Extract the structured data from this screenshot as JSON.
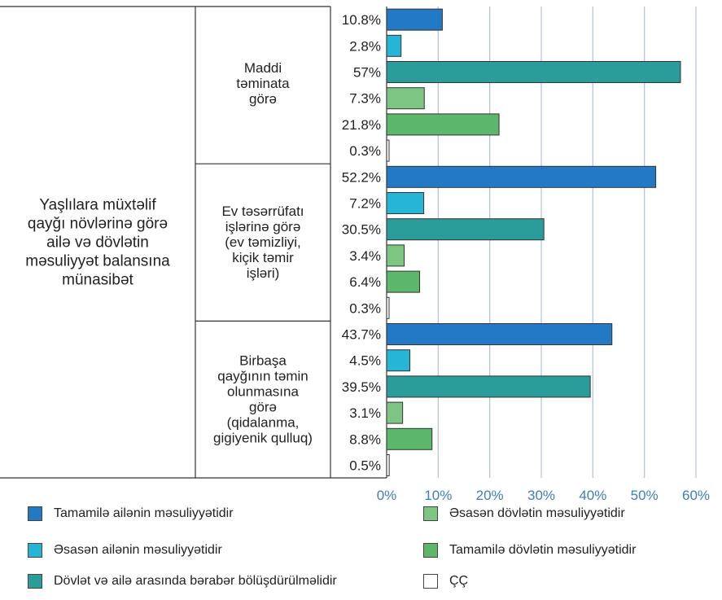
{
  "chart_data": {
    "type": "bar",
    "orientation": "horizontal",
    "row_header": "Yaşlılara müxtəlif qayğı növlərinə görə ailə və dövlətin məsuliyyət balansına münasibət",
    "groups": [
      {
        "label": "Maddi təminata görə",
        "values": [
          10.8,
          2.8,
          57,
          7.3,
          21.8,
          0.3
        ],
        "value_labels": [
          "10.8%",
          "2.8%",
          "57%",
          "7.3%",
          "21.8%",
          "0.3%"
        ]
      },
      {
        "label": "Ev təsərrüfatı işlərinə görə (ev təmizliyi, kiçik təmir işləri)",
        "values": [
          52.2,
          7.2,
          30.5,
          3.4,
          6.4,
          0.3
        ],
        "value_labels": [
          "52.2%",
          "7.2%",
          "30.5%",
          "3.4%",
          "6.4%",
          "0.3%"
        ]
      },
      {
        "label": "Birbaşa qayğının təmin olunmasına görə (qidalanma, gigiyenik qulluq)",
        "values": [
          43.7,
          4.5,
          39.5,
          3.1,
          8.8,
          0.5
        ],
        "value_labels": [
          "43.7%",
          "4.5%",
          "39.5%",
          "3.1%",
          "8.8%",
          "0.5%"
        ]
      }
    ],
    "series": [
      {
        "name": "Tamamilə ailənin məsuliyyətidir",
        "color": "#2479c4"
      },
      {
        "name": "Əsasən ailənin məsuliyyətidir",
        "color": "#27b5d5"
      },
      {
        "name": "Dövlət və ailə arasında bərabər bölüşdürülməlidir",
        "color": "#2a9c9a"
      },
      {
        "name": "Əsasən dövlətin məsuliyyətidir",
        "color": "#7cc583"
      },
      {
        "name": "Tamamilə dövlətin məsuliyyətidir",
        "color": "#5cb76a"
      },
      {
        "name": "ÇÇ",
        "color": "#ffffff"
      }
    ],
    "xlim": [
      0,
      60
    ],
    "x_ticks": [
      "0%",
      "10%",
      "20%",
      "30%",
      "40%",
      "50%",
      "60%"
    ],
    "grid": "vertical",
    "axis_color": "#3e7cbf",
    "legend_position": "bottom"
  }
}
